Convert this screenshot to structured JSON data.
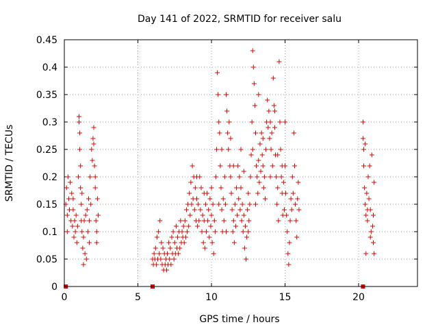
{
  "chart_data": {
    "type": "scatter",
    "title": "Day 141 of 2022, SRMTID for receiver salu",
    "xlabel": "GPS time / hours",
    "ylabel": "SRMTID / TECUs",
    "xlim": [
      0,
      24
    ],
    "ylim": [
      0,
      0.45
    ],
    "xticks": [
      0,
      5,
      10,
      15,
      20
    ],
    "yticks": [
      0,
      0.05,
      0.1,
      0.15,
      0.2,
      0.25,
      0.3,
      0.35,
      0.4,
      0.45
    ],
    "grid": true,
    "marker": "plus",
    "color": "#e00000",
    "zero_markers_x": [
      0.1,
      6.0,
      20.3
    ],
    "series": [
      {
        "name": "SRMTID",
        "points": [
          [
            0.1,
            0.15
          ],
          [
            0.15,
            0.18
          ],
          [
            0.2,
            0.13
          ],
          [
            0.25,
            0.2
          ],
          [
            0.3,
            0.16
          ],
          [
            0.35,
            0.14
          ],
          [
            0.4,
            0.19
          ],
          [
            0.45,
            0.12
          ],
          [
            0.5,
            0.17
          ],
          [
            0.55,
            0.11
          ],
          [
            0.6,
            0.14
          ],
          [
            0.65,
            0.09
          ],
          [
            0.7,
            0.12
          ],
          [
            0.75,
            0.1
          ],
          [
            0.8,
            0.13
          ],
          [
            0.85,
            0.08
          ],
          [
            0.9,
            0.11
          ],
          [
            0.95,
            0.2
          ],
          [
            1.0,
            0.31
          ],
          [
            1.0,
            0.3
          ],
          [
            1.05,
            0.28
          ],
          [
            1.05,
            0.25
          ],
          [
            1.1,
            0.22
          ],
          [
            1.1,
            0.18
          ],
          [
            1.15,
            0.15
          ],
          [
            1.15,
            0.12
          ],
          [
            1.2,
            0.1
          ],
          [
            1.25,
            0.07
          ],
          [
            1.3,
            0.09
          ],
          [
            1.3,
            0.04
          ],
          [
            1.35,
            0.12
          ],
          [
            1.4,
            0.06
          ],
          [
            1.45,
            0.13
          ],
          [
            1.5,
            0.05
          ],
          [
            1.55,
            0.14
          ],
          [
            1.6,
            0.1
          ],
          [
            1.65,
            0.16
          ],
          [
            1.7,
            0.12
          ],
          [
            1.75,
            0.2
          ],
          [
            1.8,
            0.15
          ],
          [
            1.85,
            0.25
          ],
          [
            1.9,
            0.23
          ],
          [
            1.95,
            0.27
          ],
          [
            2.0,
            0.29
          ],
          [
            2.0,
            0.26
          ],
          [
            2.05,
            0.22
          ],
          [
            2.1,
            0.18
          ],
          [
            2.15,
            0.12
          ],
          [
            2.2,
            0.1
          ],
          [
            2.2,
            0.08
          ],
          [
            2.25,
            0.16
          ],
          [
            2.3,
            0.13
          ],
          [
            0.2,
            0.1
          ],
          [
            0.6,
            0.16
          ],
          [
            1.2,
            0.17
          ],
          [
            1.7,
            0.08
          ],
          [
            2.1,
            0.2
          ],
          [
            6.0,
            0.05
          ],
          [
            6.05,
            0.04
          ],
          [
            6.1,
            0.06
          ],
          [
            6.15,
            0.05
          ],
          [
            6.2,
            0.07
          ],
          [
            6.25,
            0.04
          ],
          [
            6.3,
            0.09
          ],
          [
            6.35,
            0.05
          ],
          [
            6.4,
            0.1
          ],
          [
            6.45,
            0.06
          ],
          [
            6.5,
            0.12
          ],
          [
            6.55,
            0.05
          ],
          [
            6.6,
            0.08
          ],
          [
            6.65,
            0.04
          ],
          [
            6.7,
            0.07
          ],
          [
            6.75,
            0.03
          ],
          [
            6.8,
            0.06
          ],
          [
            6.85,
            0.04
          ],
          [
            6.9,
            0.05
          ],
          [
            6.95,
            0.03
          ],
          [
            7.0,
            0.06
          ],
          [
            7.05,
            0.04
          ],
          [
            7.1,
            0.08
          ],
          [
            7.15,
            0.05
          ],
          [
            7.2,
            0.07
          ],
          [
            7.25,
            0.04
          ],
          [
            7.3,
            0.09
          ],
          [
            7.35,
            0.06
          ],
          [
            7.4,
            0.1
          ],
          [
            7.45,
            0.05
          ],
          [
            7.5,
            0.08
          ],
          [
            7.55,
            0.06
          ],
          [
            7.6,
            0.11
          ],
          [
            7.65,
            0.07
          ],
          [
            7.7,
            0.09
          ],
          [
            7.75,
            0.06
          ],
          [
            7.8,
            0.1
          ],
          [
            7.85,
            0.07
          ],
          [
            7.9,
            0.12
          ],
          [
            7.95,
            0.08
          ],
          [
            8.0,
            0.1
          ],
          [
            8.05,
            0.09
          ],
          [
            8.1,
            0.11
          ],
          [
            8.15,
            0.08
          ],
          [
            8.2,
            0.12
          ],
          [
            8.25,
            0.09
          ],
          [
            8.3,
            0.14
          ],
          [
            8.35,
            0.1
          ],
          [
            8.4,
            0.15
          ],
          [
            8.45,
            0.11
          ],
          [
            8.5,
            0.17
          ],
          [
            8.55,
            0.13
          ],
          [
            8.6,
            0.19
          ],
          [
            8.65,
            0.15
          ],
          [
            8.7,
            0.22
          ],
          [
            8.75,
            0.16
          ],
          [
            8.8,
            0.2
          ],
          [
            8.85,
            0.14
          ],
          [
            8.9,
            0.18
          ],
          [
            8.95,
            0.12
          ],
          [
            9.0,
            0.16
          ],
          [
            9.05,
            0.11
          ],
          [
            9.1,
            0.15
          ],
          [
            9.15,
            0.12
          ],
          [
            9.2,
            0.2
          ],
          [
            9.25,
            0.14
          ],
          [
            9.3,
            0.18
          ],
          [
            9.35,
            0.1
          ],
          [
            9.4,
            0.13
          ],
          [
            9.45,
            0.08
          ],
          [
            9.5,
            0.12
          ],
          [
            9.55,
            0.07
          ],
          [
            9.6,
            0.15
          ],
          [
            9.65,
            0.1
          ],
          [
            9.7,
            0.17
          ],
          [
            9.75,
            0.12
          ],
          [
            9.8,
            0.14
          ],
          [
            9.85,
            0.09
          ],
          [
            9.9,
            0.16
          ],
          [
            9.95,
            0.11
          ],
          [
            10.0,
            0.13
          ],
          [
            10.05,
            0.08
          ],
          [
            10.1,
            0.15
          ],
          [
            10.15,
            0.06
          ],
          [
            10.2,
            0.12
          ],
          [
            10.25,
            0.1
          ],
          [
            10.3,
            0.2
          ],
          [
            10.35,
            0.25
          ],
          [
            10.4,
            0.39
          ],
          [
            10.45,
            0.35
          ],
          [
            10.5,
            0.3
          ],
          [
            10.55,
            0.28
          ],
          [
            10.6,
            0.22
          ],
          [
            10.65,
            0.18
          ],
          [
            10.7,
            0.14
          ],
          [
            10.75,
            0.1
          ],
          [
            10.8,
            0.16
          ],
          [
            10.85,
            0.12
          ],
          [
            10.9,
            0.2
          ],
          [
            10.95,
            0.15
          ],
          [
            11.0,
            0.35
          ],
          [
            11.05,
            0.32
          ],
          [
            11.1,
            0.28
          ],
          [
            11.15,
            0.25
          ],
          [
            11.2,
            0.3
          ],
          [
            11.25,
            0.22
          ],
          [
            11.3,
            0.2
          ],
          [
            11.35,
            0.17
          ],
          [
            11.4,
            0.14
          ],
          [
            11.45,
            0.1
          ],
          [
            11.5,
            0.12
          ],
          [
            11.55,
            0.08
          ],
          [
            11.6,
            0.15
          ],
          [
            11.65,
            0.11
          ],
          [
            11.7,
            0.18
          ],
          [
            11.75,
            0.13
          ],
          [
            11.8,
            0.22
          ],
          [
            11.85,
            0.16
          ],
          [
            11.9,
            0.2
          ],
          [
            11.95,
            0.14
          ],
          [
            12.0,
            0.18
          ],
          [
            12.05,
            0.12
          ],
          [
            12.1,
            0.15
          ],
          [
            12.15,
            0.1
          ],
          [
            12.2,
            0.13
          ],
          [
            12.25,
            0.07
          ],
          [
            12.3,
            0.11
          ],
          [
            12.35,
            0.05
          ],
          [
            12.4,
            0.09
          ],
          [
            12.45,
            0.14
          ],
          [
            12.5,
            0.17
          ],
          [
            12.55,
            0.12
          ],
          [
            12.6,
            0.15
          ],
          [
            12.65,
            0.2
          ],
          [
            12.7,
            0.24
          ],
          [
            12.75,
            0.3
          ],
          [
            12.8,
            0.43
          ],
          [
            12.85,
            0.4
          ],
          [
            12.9,
            0.37
          ],
          [
            12.95,
            0.33
          ],
          [
            13.0,
            0.28
          ],
          [
            13.05,
            0.22
          ],
          [
            13.1,
            0.2
          ],
          [
            13.15,
            0.17
          ],
          [
            13.2,
            0.23
          ],
          [
            13.25,
            0.19
          ],
          [
            13.3,
            0.26
          ],
          [
            13.35,
            0.21
          ],
          [
            13.4,
            0.28
          ],
          [
            13.45,
            0.24
          ],
          [
            13.5,
            0.22
          ],
          [
            13.55,
            0.18
          ],
          [
            13.6,
            0.2
          ],
          [
            13.65,
            0.16
          ],
          [
            13.7,
            0.25
          ],
          [
            13.75,
            0.3
          ],
          [
            13.8,
            0.34
          ],
          [
            13.85,
            0.29
          ],
          [
            13.9,
            0.32
          ],
          [
            13.95,
            0.27
          ],
          [
            14.0,
            0.3
          ],
          [
            14.05,
            0.25
          ],
          [
            14.1,
            0.28
          ],
          [
            14.15,
            0.22
          ],
          [
            14.2,
            0.38
          ],
          [
            14.25,
            0.33
          ],
          [
            14.3,
            0.29
          ],
          [
            14.35,
            0.24
          ],
          [
            14.4,
            0.2
          ],
          [
            14.45,
            0.15
          ],
          [
            14.5,
            0.18
          ],
          [
            14.55,
            0.12
          ],
          [
            14.6,
            0.41
          ],
          [
            14.65,
            0.3
          ],
          [
            14.7,
            0.25
          ],
          [
            14.75,
            0.2
          ],
          [
            14.8,
            0.17
          ],
          [
            14.85,
            0.13
          ],
          [
            14.9,
            0.19
          ],
          [
            14.95,
            0.14
          ],
          [
            15.0,
            0.22
          ],
          [
            15.05,
            0.17
          ],
          [
            15.1,
            0.13
          ],
          [
            15.15,
            0.1
          ],
          [
            15.2,
            0.06
          ],
          [
            15.25,
            0.04
          ],
          [
            15.3,
            0.08
          ],
          [
            15.35,
            0.12
          ],
          [
            15.4,
            0.16
          ],
          [
            15.45,
            0.14
          ],
          [
            15.5,
            0.2
          ],
          [
            15.55,
            0.17
          ],
          [
            15.6,
            0.28
          ],
          [
            15.65,
            0.22
          ],
          [
            15.7,
            0.15
          ],
          [
            15.75,
            0.12
          ],
          [
            15.8,
            0.09
          ],
          [
            15.85,
            0.16
          ],
          [
            15.9,
            0.19
          ],
          [
            15.95,
            0.14
          ],
          [
            9.0,
            0.2
          ],
          [
            9.5,
            0.17
          ],
          [
            10.0,
            0.18
          ],
          [
            10.5,
            0.15
          ],
          [
            11.0,
            0.1
          ],
          [
            11.5,
            0.22
          ],
          [
            12.0,
            0.25
          ],
          [
            12.5,
            0.1
          ],
          [
            13.0,
            0.15
          ],
          [
            13.5,
            0.27
          ],
          [
            14.0,
            0.2
          ],
          [
            14.5,
            0.24
          ],
          [
            15.0,
            0.3
          ],
          [
            11.3,
            0.27
          ],
          [
            12.2,
            0.21
          ],
          [
            13.2,
            0.35
          ],
          [
            14.3,
            0.32
          ],
          [
            10.7,
            0.25
          ],
          [
            12.8,
            0.25
          ],
          [
            14.8,
            0.22
          ],
          [
            20.3,
            0.3
          ],
          [
            20.3,
            0.27
          ],
          [
            20.35,
            0.25
          ],
          [
            20.35,
            0.22
          ],
          [
            20.4,
            0.18
          ],
          [
            20.45,
            0.15
          ],
          [
            20.5,
            0.13
          ],
          [
            20.5,
            0.06
          ],
          [
            20.55,
            0.17
          ],
          [
            20.6,
            0.12
          ],
          [
            20.65,
            0.2
          ],
          [
            20.7,
            0.16
          ],
          [
            20.75,
            0.22
          ],
          [
            20.8,
            0.14
          ],
          [
            20.85,
            0.1
          ],
          [
            20.9,
            0.24
          ],
          [
            20.95,
            0.11
          ],
          [
            21.0,
            0.08
          ],
          [
            21.0,
            0.13
          ],
          [
            21.05,
            0.06
          ],
          [
            21.05,
            0.19
          ],
          [
            20.45,
            0.26
          ],
          [
            20.6,
            0.14
          ],
          [
            20.8,
            0.09
          ]
        ]
      }
    ]
  }
}
